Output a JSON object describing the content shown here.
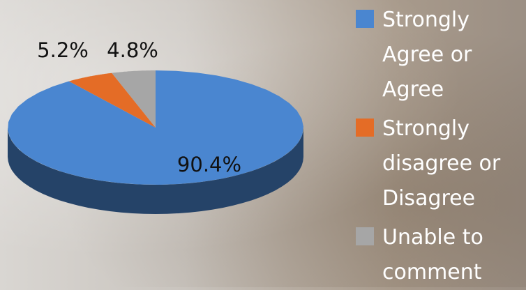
{
  "chart_data": {
    "type": "pie3d",
    "categories": [
      "Strongly Agree or Agree",
      "Strongly disagree or Disagree",
      "Unable to comment"
    ],
    "values": [
      90.4,
      5.2,
      4.8
    ],
    "value_labels": [
      "90.4%",
      "5.2%",
      "4.8%"
    ],
    "colors": [
      "#4a86d0",
      "#e46c26",
      "#a6a6a6"
    ],
    "legend": "right"
  }
}
